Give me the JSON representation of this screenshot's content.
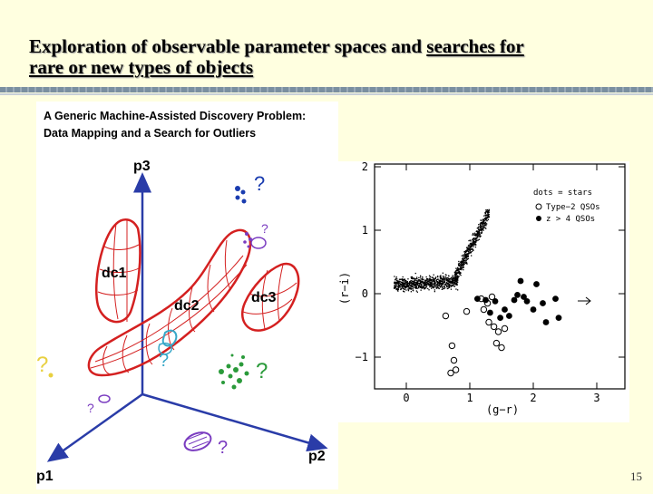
{
  "slide": {
    "title_part1": "Exploration of observable parameter spaces and ",
    "title_link1": "searches for",
    "title_link2": "rare or new types of objects",
    "page_number": "15"
  },
  "diagram": {
    "heading_line1": "A Generic Machine-Assisted Discovery Problem:",
    "heading_line2": "Data Mapping and a Search for Outliers",
    "axis_p1": "p1",
    "axis_p2": "p2",
    "axis_p3": "p3",
    "cluster_dc1": "dc1",
    "cluster_dc2": "dc2",
    "cluster_dc3": "dc3",
    "question_mark": "?"
  },
  "plot": {
    "ylabel": "(r−i)",
    "xlabel": "(g−r)",
    "legend_dots": "dots = stars",
    "legend_open": "Type−2 QSOs",
    "legend_filled": "z > 4 QSOs",
    "xticks": [
      "0",
      "1",
      "2",
      "3"
    ],
    "yticks": [
      "2",
      "1",
      "0",
      "−1"
    ]
  },
  "colors": {
    "cluster_red": "#d42020",
    "axis_blue": "#2a3ca8",
    "outlier_blue": "#1a3cb0",
    "outlier_purple": "#7a3cc0",
    "outlier_green": "#2a9a3a",
    "outlier_yellow": "#e8d040",
    "outlier_cyan": "#38a8c8"
  }
}
